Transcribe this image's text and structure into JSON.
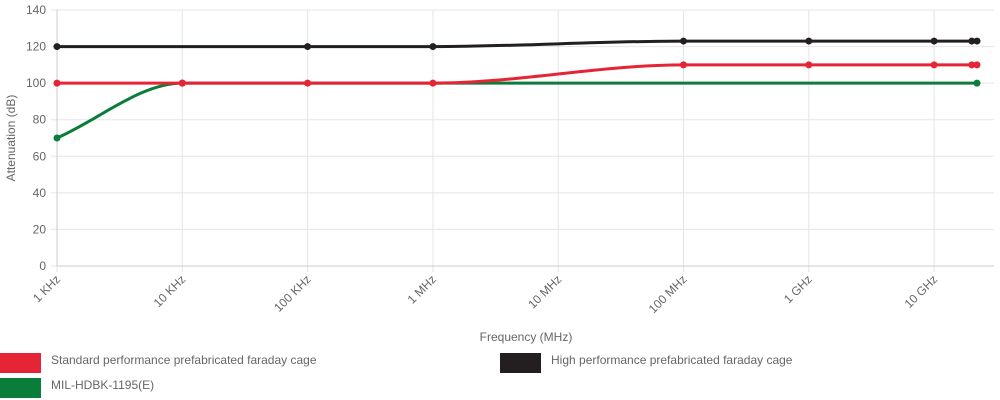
{
  "chart_data": {
    "type": "line",
    "x_label": "Frequency (MHz)",
    "y_label": "Attenuation (dB)",
    "xscale": "log",
    "grid": true,
    "xlim": [
      0.001,
      30000
    ],
    "ylim": [
      0,
      140
    ],
    "xticks": [
      {
        "value": 0.001,
        "label": "1 KHz"
      },
      {
        "value": 0.01,
        "label": "10 KHz"
      },
      {
        "value": 0.1,
        "label": "100 KHz"
      },
      {
        "value": 1,
        "label": "1 MHz"
      },
      {
        "value": 10,
        "label": "10 MHz"
      },
      {
        "value": 100,
        "label": "100 MHz"
      },
      {
        "value": 1000,
        "label": "1 GHz"
      },
      {
        "value": 10000,
        "label": "10 GHz"
      }
    ],
    "yticks": [
      0,
      20,
      40,
      60,
      80,
      100,
      120,
      140
    ],
    "series": [
      {
        "name": "Standard performance prefabricated faraday cage",
        "color": "#e52535",
        "x": [
          0.001,
          0.01,
          0.1,
          1,
          100,
          1000,
          10000,
          20000,
          22000
        ],
        "values": [
          100,
          100,
          100,
          100,
          110,
          110,
          110,
          110,
          110
        ]
      },
      {
        "name": "High performance prefabricated faraday cage",
        "color": "#231f20",
        "x": [
          0.001,
          0.1,
          1,
          100,
          1000,
          10000,
          20000,
          22000
        ],
        "values": [
          120,
          120,
          120,
          123,
          123,
          123,
          123,
          123
        ]
      },
      {
        "name": "MIL-HDBK-1195(E)",
        "color": "#0b7d3a",
        "x": [
          0.001,
          0.01,
          22000
        ],
        "values": [
          70,
          100,
          100
        ]
      }
    ]
  }
}
